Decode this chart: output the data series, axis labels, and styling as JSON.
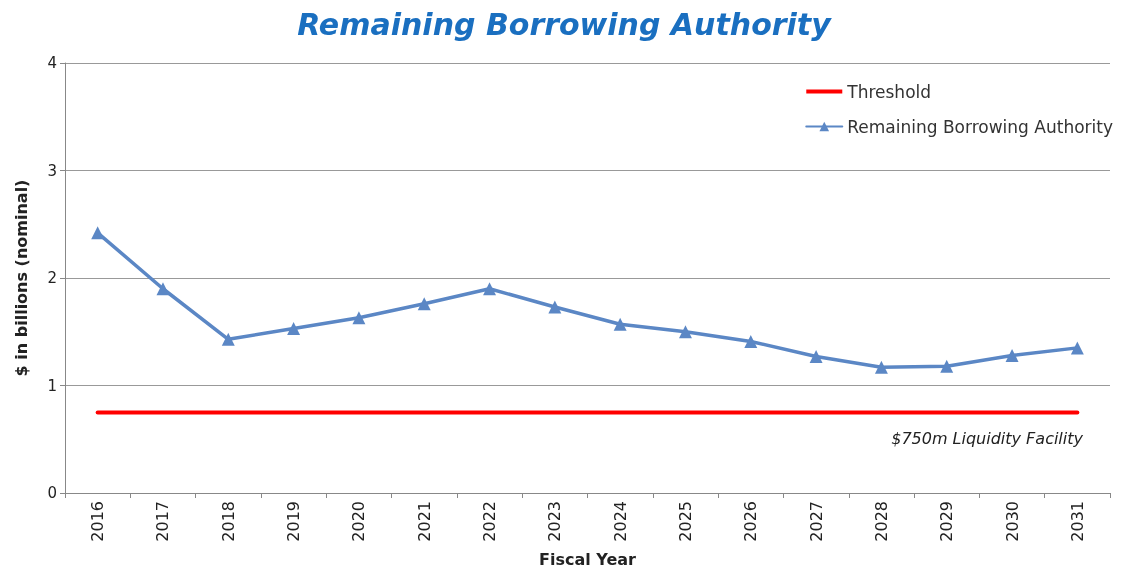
{
  "chart_data": {
    "type": "line",
    "title": "Remaining Borrowing Authority",
    "xlabel": "Fiscal Year",
    "ylabel": "$ in billions (nominal)",
    "categories": [
      "2016",
      "2017",
      "2018",
      "2019",
      "2020",
      "2021",
      "2022",
      "2023",
      "2024",
      "2025",
      "2026",
      "2027",
      "2028",
      "2029",
      "2030",
      "2031"
    ],
    "series": [
      {
        "name": "Threshold",
        "color": "#ff0000",
        "marker": "none",
        "values": [
          0.75,
          0.75,
          0.75,
          0.75,
          0.75,
          0.75,
          0.75,
          0.75,
          0.75,
          0.75,
          0.75,
          0.75,
          0.75,
          0.75,
          0.75,
          0.75
        ]
      },
      {
        "name": "Remaining Borrowing Authority",
        "color": "#5b87c5",
        "marker": "triangle",
        "values": [
          2.42,
          1.9,
          1.43,
          1.53,
          1.63,
          1.76,
          1.9,
          1.73,
          1.57,
          1.5,
          1.41,
          1.27,
          1.17,
          1.18,
          1.28,
          1.35
        ]
      }
    ],
    "ylim": [
      0,
      4
    ],
    "yticks": [
      0,
      1,
      2,
      3,
      4
    ],
    "grid": "y",
    "legend": "top right",
    "line_style": "solid",
    "annotations": [
      "$750m Liquidity Facility"
    ]
  }
}
